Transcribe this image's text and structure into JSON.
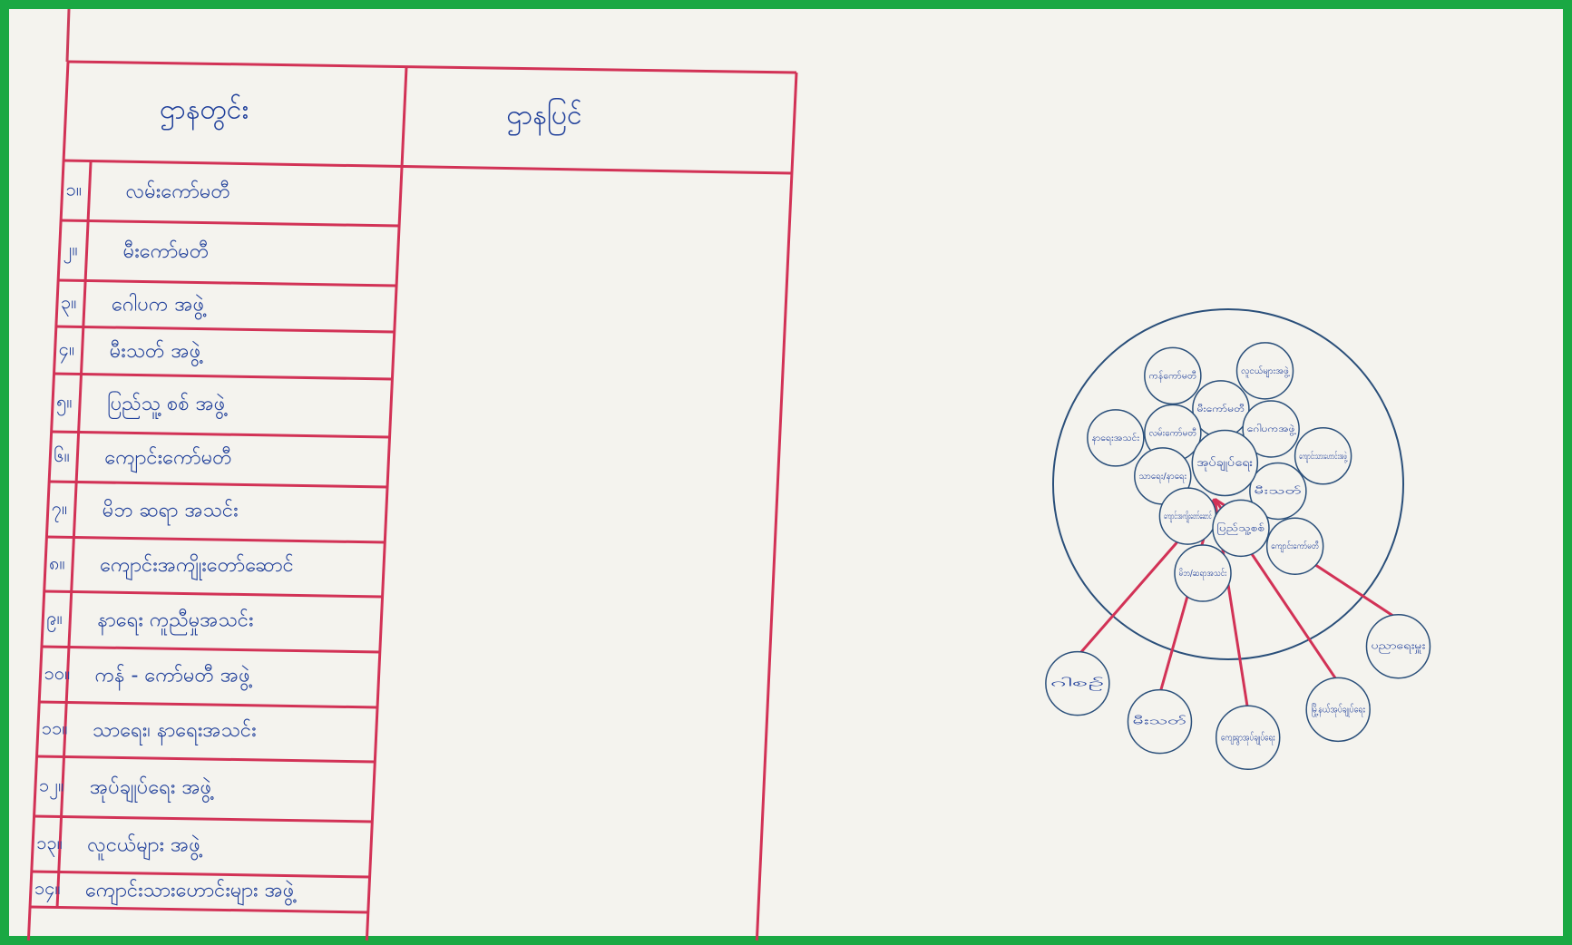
{
  "table": {
    "headers": [
      "ဌာနတွင်း",
      "ဌာနပြင်"
    ],
    "rows": [
      [
        "၁။",
        "လမ်းကော်မတီ"
      ],
      [
        "၂။",
        "မီးကော်မတီ"
      ],
      [
        "၃။",
        "ဂေါပက အဖွဲ့"
      ],
      [
        "၄။",
        "မီးသတ် အဖွဲ့"
      ],
      [
        "၅။",
        "ပြည်သူ့ စစ် အဖွဲ့"
      ],
      [
        "၆။",
        "ကျောင်းကော်မတီ"
      ],
      [
        "၇။",
        "မိဘ ဆရာ အသင်း"
      ],
      [
        "၈။",
        "ကျောင်းအကျိုးတော်ဆောင်"
      ],
      [
        "၉။",
        "နာရေး ကူညီမှုအသင်း"
      ],
      [
        "၁၀။",
        "ကန် - ကော်မတီ အဖွဲ့"
      ],
      [
        "၁၁။",
        "သာရေး၊ နာရေးအသင်း"
      ],
      [
        "၁၂။",
        "အုပ်ချုပ်ရေး အဖွဲ့"
      ],
      [
        "၁၃။",
        "လူငယ်များ အဖွဲ့"
      ],
      [
        "၁၄။",
        "ကျောင်းသားဟောင်းများ အဖွဲ့"
      ]
    ]
  },
  "diagram": {
    "center": "အုပ်ချုပ်ရေး",
    "inner": [
      "ကန်ကော်မတီ",
      "လူငယ်များအဖွဲ့",
      "မီးကော်မတီ",
      "လမ်းကော်မတီ",
      "ဂေါပကအဖွဲ့",
      "နာရေးအသင်း",
      "ကျောင်းသားဟောင်းအဖွဲ့",
      "သာရေး/နာရေး",
      "မီးသတ်",
      "ကျောင်းအကျိုးတော်ဆောင်",
      "ပြည်သူ့စစ်",
      "ကျောင်းကော်မတီ",
      "မိဘ/ဆရာအသင်း"
    ],
    "outer": [
      "ဂါစဉ်",
      "မီးသတ်",
      "ကျေးရွာအုပ်ချုပ်ရေး",
      "မြို့နယ်အုပ်ချုပ်ရေး",
      "ပညာရေးမှူး"
    ]
  }
}
